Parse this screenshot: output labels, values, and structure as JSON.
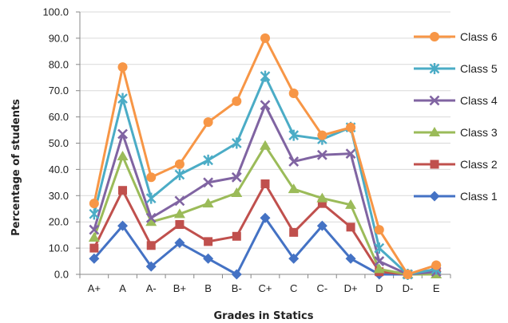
{
  "chart_data": {
    "type": "line",
    "title": "",
    "xlabel": "Grades in Statics",
    "ylabel": "Percentage of students",
    "ylim": [
      0,
      100
    ],
    "ytick_step": 10,
    "ytick_labels": [
      "0.0",
      "10.0",
      "20.0",
      "30.0",
      "40.0",
      "50.0",
      "60.0",
      "70.0",
      "80.0",
      "90.0",
      "100.0"
    ],
    "grid": "horizontal",
    "legend_position": "right",
    "categories": [
      "A+",
      "A",
      "A-",
      "B+",
      "B",
      "B-",
      "C+",
      "C",
      "C-",
      "D+",
      "D",
      "D-",
      "E"
    ],
    "series": [
      {
        "name": "Class 1",
        "color": "#4472C4",
        "marker": "diamond",
        "values": [
          6,
          18.5,
          3,
          12,
          6,
          0,
          21.5,
          6,
          18.5,
          6,
          0,
          0,
          1
        ]
      },
      {
        "name": "Class 2",
        "color": "#C0504D",
        "marker": "square",
        "values": [
          10,
          32,
          11,
          19,
          12.5,
          14.5,
          34.5,
          16,
          27,
          18,
          1,
          0,
          2
        ]
      },
      {
        "name": "Class 3",
        "color": "#9BBB59",
        "marker": "triangle",
        "values": [
          14,
          45,
          20,
          23,
          27,
          31,
          49,
          32.5,
          29,
          26.5,
          2,
          0,
          0
        ]
      },
      {
        "name": "Class 4",
        "color": "#8064A2",
        "marker": "x",
        "values": [
          17,
          53.5,
          21.5,
          28,
          35,
          37,
          64.5,
          43,
          45.5,
          46,
          5,
          0,
          1
        ]
      },
      {
        "name": "Class 5",
        "color": "#4BACC6",
        "marker": "star",
        "values": [
          23,
          67,
          29,
          38,
          43.5,
          50,
          75.5,
          53,
          51.5,
          56,
          10,
          0,
          2
        ]
      },
      {
        "name": "Class 6",
        "color": "#F79646",
        "marker": "circle",
        "values": [
          27,
          79,
          37,
          42,
          58,
          66,
          90,
          69,
          53,
          56,
          17,
          0,
          3.5
        ]
      }
    ]
  }
}
